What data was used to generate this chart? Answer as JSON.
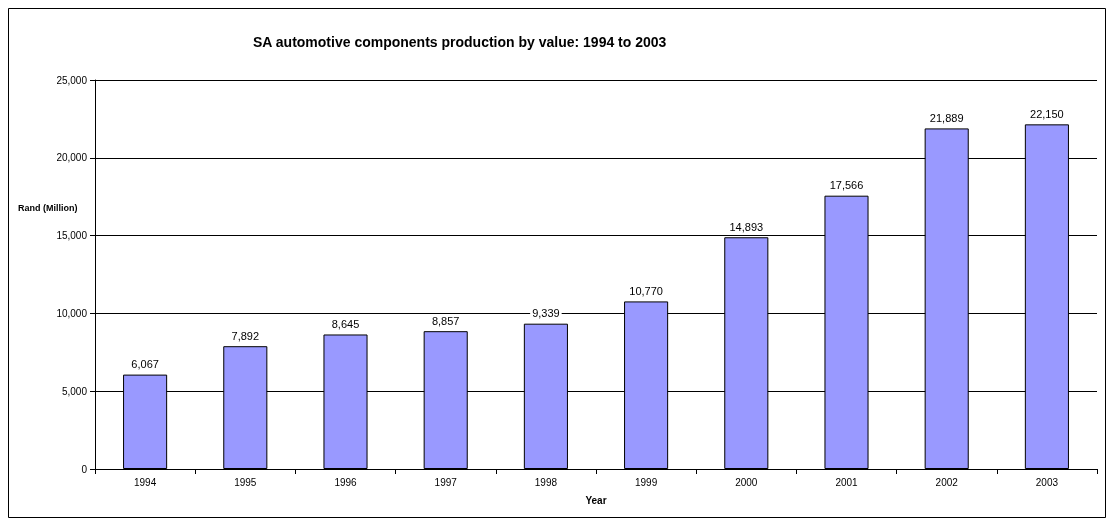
{
  "chart_data": {
    "type": "bar",
    "title": "SA automotive components production by value: 1994 to 2003",
    "xlabel": "Year",
    "ylabel": "Rand (Million)",
    "categories": [
      "1994",
      "1995",
      "1996",
      "1997",
      "1998",
      "1999",
      "2000",
      "2001",
      "2002",
      "2003"
    ],
    "values": [
      6067,
      7892,
      8645,
      8857,
      9339,
      10770,
      14893,
      17566,
      21889,
      22150
    ],
    "value_labels": [
      "6,067",
      "7,892",
      "8,645",
      "8,857",
      "9,339",
      "10,770",
      "14,893",
      "17,566",
      "21,889",
      "22,150"
    ],
    "color": "#9999ff",
    "ylim": [
      0,
      25000
    ],
    "yticks": [
      0,
      {
        "value": 5000,
        "label": "5,000"
      },
      {
        "value": 10000,
        "label": "10,000"
      },
      {
        "value": 15000,
        "label": "15,000"
      },
      {
        "value": 20000,
        "label": "20,000"
      },
      {
        "value": 25000,
        "label": "25,000"
      }
    ],
    "grid": "y"
  }
}
